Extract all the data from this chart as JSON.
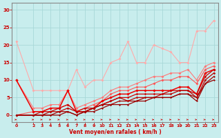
{
  "xlabel": "Vent moyen/en rafales ( km/h )",
  "xlim": [
    -0.5,
    23.5
  ],
  "ylim": [
    -2,
    32
  ],
  "bg_color": "#c8eded",
  "grid_color": "#a8d8d8",
  "text_color": "#cc0000",
  "axis_color": "#888888",
  "lines": [
    {
      "x": [
        0,
        2,
        3,
        4,
        5,
        6,
        7,
        8,
        9,
        10,
        11,
        12,
        13,
        14,
        15,
        16,
        17,
        18,
        19,
        20,
        21,
        22,
        23
      ],
      "y": [
        21,
        7,
        7,
        7,
        7,
        7,
        13,
        8,
        10,
        10,
        15,
        16,
        21,
        15,
        15,
        20,
        19,
        18,
        15,
        15,
        24,
        24,
        27
      ],
      "color": "#ffaaaa",
      "lw": 0.8,
      "marker": "D",
      "ms": 2.0
    },
    {
      "x": [
        0,
        2,
        3,
        4,
        5,
        6,
        7,
        8,
        9,
        10,
        11,
        12,
        13,
        14,
        15,
        16,
        17,
        18,
        19,
        20,
        21,
        22,
        23
      ],
      "y": [
        10,
        2,
        2,
        3,
        3,
        7,
        2,
        3,
        4,
        5,
        7,
        8,
        8,
        9,
        10,
        11,
        11,
        12,
        12,
        13,
        10,
        14,
        15
      ],
      "color": "#ff7777",
      "lw": 0.8,
      "marker": "D",
      "ms": 2.0
    },
    {
      "x": [
        0,
        2,
        3,
        4,
        5,
        6,
        7,
        8,
        9,
        10,
        11,
        12,
        13,
        14,
        15,
        16,
        17,
        18,
        19,
        20,
        21,
        22,
        23
      ],
      "y": [
        0,
        1,
        1,
        2,
        2,
        3,
        1,
        2,
        3,
        4,
        6,
        7,
        7,
        8,
        8,
        9,
        10,
        10,
        11,
        11,
        9,
        13,
        14
      ],
      "color": "#ff5555",
      "lw": 0.8,
      "marker": "D",
      "ms": 2.0
    },
    {
      "x": [
        0,
        2,
        3,
        4,
        5,
        6,
        7,
        8,
        9,
        10,
        11,
        12,
        13,
        14,
        15,
        16,
        17,
        18,
        19,
        20,
        21,
        22,
        23
      ],
      "y": [
        10,
        1,
        1,
        2,
        2,
        7,
        1,
        1,
        2,
        4,
        5,
        6,
        6,
        7,
        7,
        7,
        7,
        7,
        8,
        8,
        6,
        12,
        13
      ],
      "color": "#ee0000",
      "lw": 1.1,
      "marker": "D",
      "ms": 2.2
    },
    {
      "x": [
        0,
        2,
        3,
        4,
        5,
        6,
        7,
        8,
        9,
        10,
        11,
        12,
        13,
        14,
        15,
        16,
        17,
        18,
        19,
        20,
        21,
        22,
        23
      ],
      "y": [
        0,
        0,
        1,
        1,
        2,
        3,
        1,
        2,
        2,
        3,
        4,
        5,
        5,
        6,
        6,
        6,
        6,
        7,
        7,
        7,
        6,
        11,
        13
      ],
      "color": "#cc0000",
      "lw": 0.9,
      "marker": "D",
      "ms": 1.8
    },
    {
      "x": [
        0,
        2,
        3,
        4,
        5,
        6,
        7,
        8,
        9,
        10,
        11,
        12,
        13,
        14,
        15,
        16,
        17,
        18,
        19,
        20,
        21,
        22,
        23
      ],
      "y": [
        0,
        0,
        0,
        1,
        1,
        2,
        1,
        1,
        2,
        3,
        4,
        5,
        4,
        5,
        5,
        5,
        6,
        6,
        7,
        7,
        5,
        10,
        12
      ],
      "color": "#bb0000",
      "lw": 0.9,
      "marker": "D",
      "ms": 1.8
    },
    {
      "x": [
        0,
        2,
        3,
        4,
        5,
        6,
        7,
        8,
        9,
        10,
        11,
        12,
        13,
        14,
        15,
        16,
        17,
        18,
        19,
        20,
        21,
        22,
        23
      ],
      "y": [
        0,
        0,
        0,
        0,
        1,
        1,
        0,
        1,
        2,
        3,
        3,
        4,
        4,
        4,
        5,
        5,
        5,
        5,
        6,
        6,
        5,
        9,
        11
      ],
      "color": "#aa0000",
      "lw": 0.9,
      "marker": "D",
      "ms": 1.5
    },
    {
      "x": [
        0,
        2,
        3,
        4,
        5,
        6,
        7,
        8,
        9,
        10,
        11,
        12,
        13,
        14,
        15,
        16,
        17,
        18,
        19,
        20,
        21,
        22,
        23
      ],
      "y": [
        0,
        0,
        0,
        0,
        0,
        1,
        0,
        1,
        1,
        2,
        3,
        3,
        3,
        4,
        4,
        5,
        5,
        5,
        6,
        6,
        4,
        9,
        10
      ],
      "color": "#990000",
      "lw": 0.9,
      "marker": "D",
      "ms": 1.5
    }
  ],
  "yticks": [
    0,
    5,
    10,
    15,
    20,
    25,
    30
  ],
  "xticks": [
    0,
    2,
    3,
    4,
    5,
    6,
    7,
    8,
    9,
    10,
    11,
    12,
    13,
    14,
    15,
    16,
    17,
    18,
    19,
    20,
    21,
    22,
    23
  ]
}
